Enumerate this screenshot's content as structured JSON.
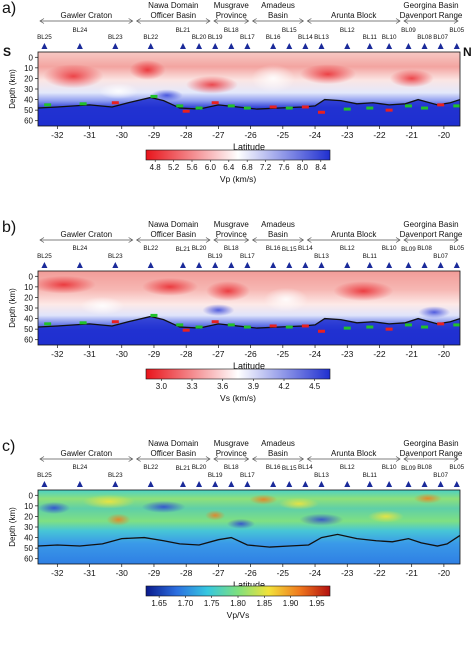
{
  "panels": [
    {
      "label": "a)",
      "show_sn": true,
      "ylabel": "Depth (km)",
      "xlabel": "Latitude",
      "colorbar": {
        "label": "Vp (km/s)",
        "ticks": [
          "4.8",
          "5.2",
          "5.6",
          "6.0",
          "6.4",
          "6.8",
          "7.2",
          "7.6",
          "8.0",
          "8.4"
        ],
        "colors": [
          "#e8141b",
          "#ffffff",
          "#1f2fd0"
        ]
      }
    },
    {
      "label": "b)",
      "show_sn": false,
      "ylabel": "Depth (km)",
      "xlabel": "Latitude",
      "colorbar": {
        "label": "Vs (km/s)",
        "ticks": [
          "3.0",
          "3.3",
          "3.6",
          "3.9",
          "4.2",
          "4.5"
        ],
        "colors": [
          "#e8141b",
          "#ffffff",
          "#1f2fd0"
        ]
      }
    },
    {
      "label": "c)",
      "show_sn": false,
      "ylabel": "Depth (km)",
      "xlabel": "Latitude",
      "colorbar": {
        "label": "Vp/Vs",
        "ticks": [
          "1.65",
          "1.70",
          "1.75",
          "1.80",
          "1.85",
          "1.90",
          "1.95"
        ],
        "colors": [
          "#0a1a8c",
          "#2c6fe0",
          "#35c7e0",
          "#7ee07e",
          "#f2e23a",
          "#f07a1e",
          "#b30f0f"
        ]
      }
    }
  ],
  "orientation": {
    "south": "S",
    "north": "N"
  },
  "regions": [
    {
      "name": [
        "Gawler Craton"
      ],
      "from": -32.6,
      "to": -29.6
    },
    {
      "name": [
        "Nawa Domain",
        "Officer Basin"
      ],
      "from": -29.6,
      "to": -27.2
    },
    {
      "name": [
        "Musgrave",
        "Province"
      ],
      "from": -27.2,
      "to": -26.0
    },
    {
      "name": [
        "Amadeus",
        "Basin"
      ],
      "from": -26.0,
      "to": -24.3
    },
    {
      "name": [
        "Arunta Block"
      ],
      "from": -24.3,
      "to": -21.3
    },
    {
      "name": [
        "Georgina Basin",
        "Davenport Range"
      ],
      "from": -21.3,
      "to": -19.5
    }
  ],
  "stations": [
    {
      "name": "BL25",
      "lat": -32.4
    },
    {
      "name": "BL24",
      "lat": -31.3
    },
    {
      "name": "BL23",
      "lat": -30.2
    },
    {
      "name": "BL22",
      "lat": -29.1
    },
    {
      "name": "BL21",
      "lat": -28.1
    },
    {
      "name": "BL20",
      "lat": -27.6
    },
    {
      "name": "BL19",
      "lat": -27.1
    },
    {
      "name": "BL18",
      "lat": -26.6
    },
    {
      "name": "BL17",
      "lat": -26.1
    },
    {
      "name": "BL16",
      "lat": -25.3
    },
    {
      "name": "BL15",
      "lat": -24.8
    },
    {
      "name": "BL14",
      "lat": -24.3
    },
    {
      "name": "BL13",
      "lat": -23.8
    },
    {
      "name": "BL12",
      "lat": -23.0
    },
    {
      "name": "BL11",
      "lat": -22.3
    },
    {
      "name": "BL10",
      "lat": -21.7
    },
    {
      "name": "BL09",
      "lat": -21.1
    },
    {
      "name": "BL08",
      "lat": -20.6
    },
    {
      "name": "BL07",
      "lat": -20.1
    },
    {
      "name": "BL05",
      "lat": -19.6
    }
  ],
  "chart_data": {
    "type": "heatmap",
    "x_ticks": [
      -32,
      -31,
      -30,
      -29,
      -28,
      -27,
      -26,
      -25,
      -24,
      -23,
      -22,
      -21,
      -20
    ],
    "xlim": [
      -32.6,
      -19.5
    ],
    "ylim": [
      65,
      -5
    ],
    "y_ticks": [
      0,
      10,
      20,
      30,
      40,
      50,
      60
    ],
    "moho": [
      [
        -32.6,
        48
      ],
      [
        -32,
        47
      ],
      [
        -31,
        45
      ],
      [
        -30.3,
        47
      ],
      [
        -29.8,
        43
      ],
      [
        -29.1,
        38
      ],
      [
        -28.7,
        41
      ],
      [
        -28.2,
        48
      ],
      [
        -27.6,
        49
      ],
      [
        -27,
        45
      ],
      [
        -26.4,
        47
      ],
      [
        -25.8,
        49
      ],
      [
        -25.1,
        48
      ],
      [
        -24.4,
        47
      ],
      [
        -24,
        46
      ],
      [
        -23.7,
        40
      ],
      [
        -23.2,
        41
      ],
      [
        -22.7,
        44
      ],
      [
        -22.2,
        43
      ],
      [
        -21.7,
        45
      ],
      [
        -21.2,
        44
      ],
      [
        -20.8,
        40
      ],
      [
        -20.2,
        45
      ],
      [
        -19.8,
        43
      ],
      [
        -19.5,
        40
      ]
    ],
    "moho_c": [
      [
        -32.6,
        48
      ],
      [
        -32,
        47
      ],
      [
        -31.3,
        48
      ],
      [
        -30.6,
        46
      ],
      [
        -30,
        41
      ],
      [
        -29.3,
        40
      ],
      [
        -28.7,
        43
      ],
      [
        -28.2,
        46
      ],
      [
        -27.6,
        47
      ],
      [
        -27,
        42
      ],
      [
        -26.6,
        40
      ],
      [
        -26.1,
        47
      ],
      [
        -25.4,
        49
      ],
      [
        -24.8,
        48
      ],
      [
        -24.2,
        47
      ],
      [
        -23.8,
        40
      ],
      [
        -23.3,
        37
      ],
      [
        -22.7,
        41
      ],
      [
        -22.1,
        43
      ],
      [
        -21.6,
        44
      ],
      [
        -21.1,
        41
      ],
      [
        -20.7,
        45
      ],
      [
        -20.2,
        48
      ],
      [
        -19.9,
        46
      ],
      [
        -19.5,
        38
      ]
    ],
    "markers": [
      {
        "lat": -32.3,
        "depth": 45,
        "color": "green"
      },
      {
        "lat": -31.2,
        "depth": 44,
        "color": "green"
      },
      {
        "lat": -30.2,
        "depth": 43,
        "color": "red"
      },
      {
        "lat": -29.0,
        "depth": 37,
        "color": "green"
      },
      {
        "lat": -28.2,
        "depth": 46,
        "color": "green"
      },
      {
        "lat": -28.0,
        "depth": 51,
        "color": "red"
      },
      {
        "lat": -27.6,
        "depth": 48,
        "color": "green"
      },
      {
        "lat": -27.1,
        "depth": 43,
        "color": "red"
      },
      {
        "lat": -26.6,
        "depth": 46,
        "color": "green"
      },
      {
        "lat": -26.1,
        "depth": 48,
        "color": "green"
      },
      {
        "lat": -25.3,
        "depth": 47,
        "color": "red"
      },
      {
        "lat": -24.8,
        "depth": 48,
        "color": "green"
      },
      {
        "lat": -24.3,
        "depth": 47,
        "color": "red"
      },
      {
        "lat": -23.8,
        "depth": 52,
        "color": "red"
      },
      {
        "lat": -23.0,
        "depth": 49,
        "color": "green"
      },
      {
        "lat": -22.3,
        "depth": 48,
        "color": "green"
      },
      {
        "lat": -21.7,
        "depth": 50,
        "color": "red"
      },
      {
        "lat": -21.1,
        "depth": 46,
        "color": "green"
      },
      {
        "lat": -20.6,
        "depth": 48,
        "color": "green"
      },
      {
        "lat": -20.1,
        "depth": 45,
        "color": "red"
      },
      {
        "lat": -19.6,
        "depth": 46,
        "color": "green"
      }
    ]
  }
}
